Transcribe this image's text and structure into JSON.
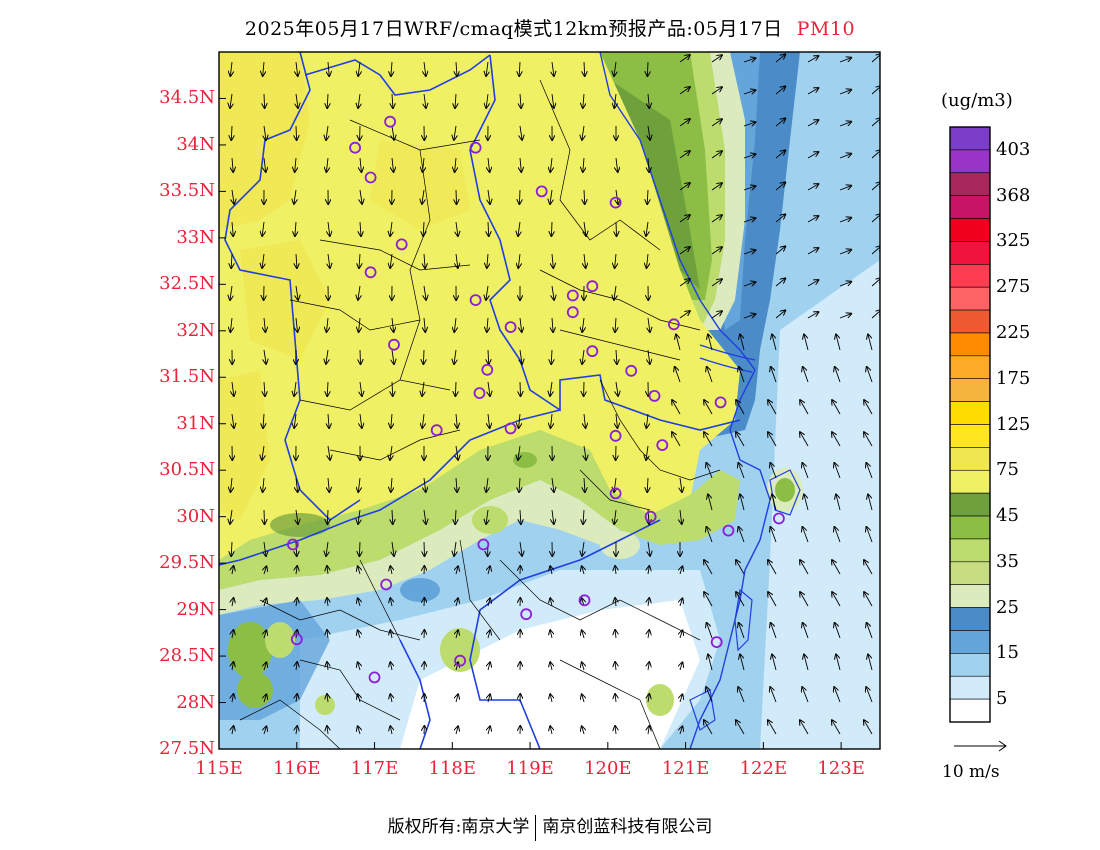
{
  "title": {
    "text": "2025年05月17日WRF/cmaq模式12km预报产品:05月17日",
    "product": "PM10"
  },
  "axes": {
    "lat_labels": [
      "34.5N",
      "34N",
      "33.5N",
      "33N",
      "32.5N",
      "32N",
      "31.5N",
      "31N",
      "30.5N",
      "30N",
      "29.5N",
      "29N",
      "28.5N",
      "28N",
      "27.5N"
    ],
    "lon_labels": [
      "115E",
      "116E",
      "117E",
      "118E",
      "119E",
      "120E",
      "121E",
      "122E",
      "123E"
    ],
    "lat_range": [
      27.5,
      35.0
    ],
    "lon_range": [
      115.0,
      123.5
    ],
    "label_color": "#e8233a"
  },
  "legend": {
    "unit": "(ug/m3)",
    "labels": [
      "403",
      "368",
      "325",
      "275",
      "225",
      "175",
      "125",
      "75",
      "45",
      "35",
      "25",
      "15",
      "5"
    ],
    "bins_top_to_bottom": [
      "#7c3ec9",
      "#9a34c8",
      "#a8285c",
      "#c81464",
      "#f0001e",
      "#f0143c",
      "#ff3c50",
      "#ff6464",
      "#f05a32",
      "#ff8c00",
      "#ffaa28",
      "#f5b43c",
      "#ffdc00",
      "#ffe61e",
      "#f0e650",
      "#f0f064",
      "#6ea03c",
      "#8cbe46",
      "#bcdc6e",
      "#c8dc82",
      "#dcebbe",
      "#4b8cc8",
      "#64a5dc",
      "#a0d2f0",
      "#d2ebfa",
      "#ffffff"
    ]
  },
  "wind": {
    "reference_label": "10 m/s"
  },
  "copyright": {
    "left": "版权所有:南京大学",
    "right": "南京创蓝科技有限公司"
  },
  "monitoring_sites": [
    [
      117.2,
      34.25
    ],
    [
      116.75,
      33.97
    ],
    [
      118.3,
      33.97
    ],
    [
      116.95,
      33.65
    ],
    [
      119.15,
      33.5
    ],
    [
      120.1,
      33.38
    ],
    [
      117.35,
      32.93
    ],
    [
      116.95,
      32.63
    ],
    [
      119.8,
      32.48
    ],
    [
      119.55,
      32.38
    ],
    [
      118.3,
      32.33
    ],
    [
      119.55,
      32.2
    ],
    [
      120.85,
      32.07
    ],
    [
      118.75,
      32.04
    ],
    [
      117.25,
      31.85
    ],
    [
      119.8,
      31.78
    ],
    [
      120.3,
      31.57
    ],
    [
      118.45,
      31.58
    ],
    [
      118.35,
      31.33
    ],
    [
      120.6,
      31.3
    ],
    [
      121.45,
      31.23
    ],
    [
      117.8,
      30.93
    ],
    [
      118.75,
      30.95
    ],
    [
      120.1,
      30.87
    ],
    [
      120.7,
      30.77
    ],
    [
      120.1,
      30.25
    ],
    [
      120.55,
      30.0
    ],
    [
      122.2,
      29.98
    ],
    [
      121.55,
      29.85
    ],
    [
      115.95,
      29.7
    ],
    [
      118.4,
      29.7
    ],
    [
      117.15,
      29.27
    ],
    [
      119.7,
      29.1
    ],
    [
      118.95,
      28.95
    ],
    [
      116.0,
      28.68
    ],
    [
      121.4,
      28.65
    ],
    [
      118.1,
      28.45
    ],
    [
      117.0,
      28.27
    ]
  ]
}
